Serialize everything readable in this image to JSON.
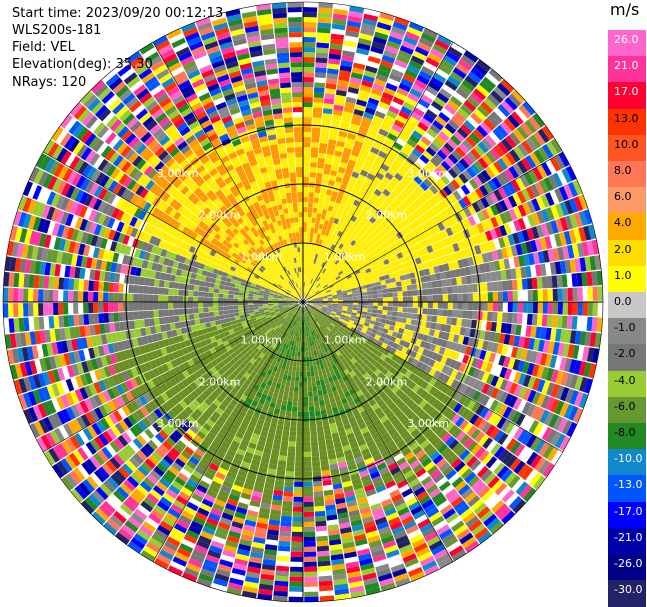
{
  "info": {
    "start_time": "Start time: 2023/09/20 00:12:13",
    "instrument": "WLS200s-181",
    "field": "Field: VEL",
    "elevation": "Elevation(deg): 35.30",
    "nrays": "NRays: 120"
  },
  "colorbar": {
    "unit": "m/s",
    "ticks": [
      "26.0",
      "21.0",
      "17.0",
      "13.0",
      "10.0",
      "8.0",
      "6.0",
      "4.0",
      "2.0",
      "1.0",
      "0.0",
      "-1.0",
      "-2.0",
      "-4.0",
      "-6.0",
      "-8.0",
      "-10.0",
      "-13.0",
      "-17.0",
      "-21.0",
      "-26.0",
      "-30.0"
    ],
    "colors": [
      "#ff66cc",
      "#ff3399",
      "#ff0033",
      "#ff3300",
      "#ff5522",
      "#ff7755",
      "#ff9966",
      "#ffaa00",
      "#ffdd00",
      "#ffff00",
      "#c8c8c8",
      "#888888",
      "#777777",
      "#99cc33",
      "#669933",
      "#228822",
      "#1188cc",
      "#0055ff",
      "#0000ff",
      "#0000aa",
      "#000088",
      "#222266"
    ]
  },
  "chart_data": {
    "type": "heatmap",
    "field": "VEL",
    "unit": "m/s",
    "nrays": 120,
    "elevation_deg": 35.3,
    "range_rings": [
      {
        "label": "1.00km"
      },
      {
        "label": "2.00km"
      },
      {
        "label": "3.00km"
      }
    ],
    "regions": [
      {
        "sector": "north",
        "dominant_value_range": [
          1.0,
          6.0
        ],
        "colors": [
          "yellow",
          "orange"
        ]
      },
      {
        "sector": "east-center",
        "dominant_value_range": [
          -1.0,
          1.0
        ],
        "colors": [
          "gray"
        ]
      },
      {
        "sector": "south",
        "dominant_value_range": [
          -6.0,
          -1.0
        ],
        "colors": [
          "olive",
          "green"
        ]
      },
      {
        "sector": "outer",
        "dominant_value_range": [
          -30.0,
          26.0
        ],
        "colors": [
          "noise"
        ]
      }
    ]
  }
}
